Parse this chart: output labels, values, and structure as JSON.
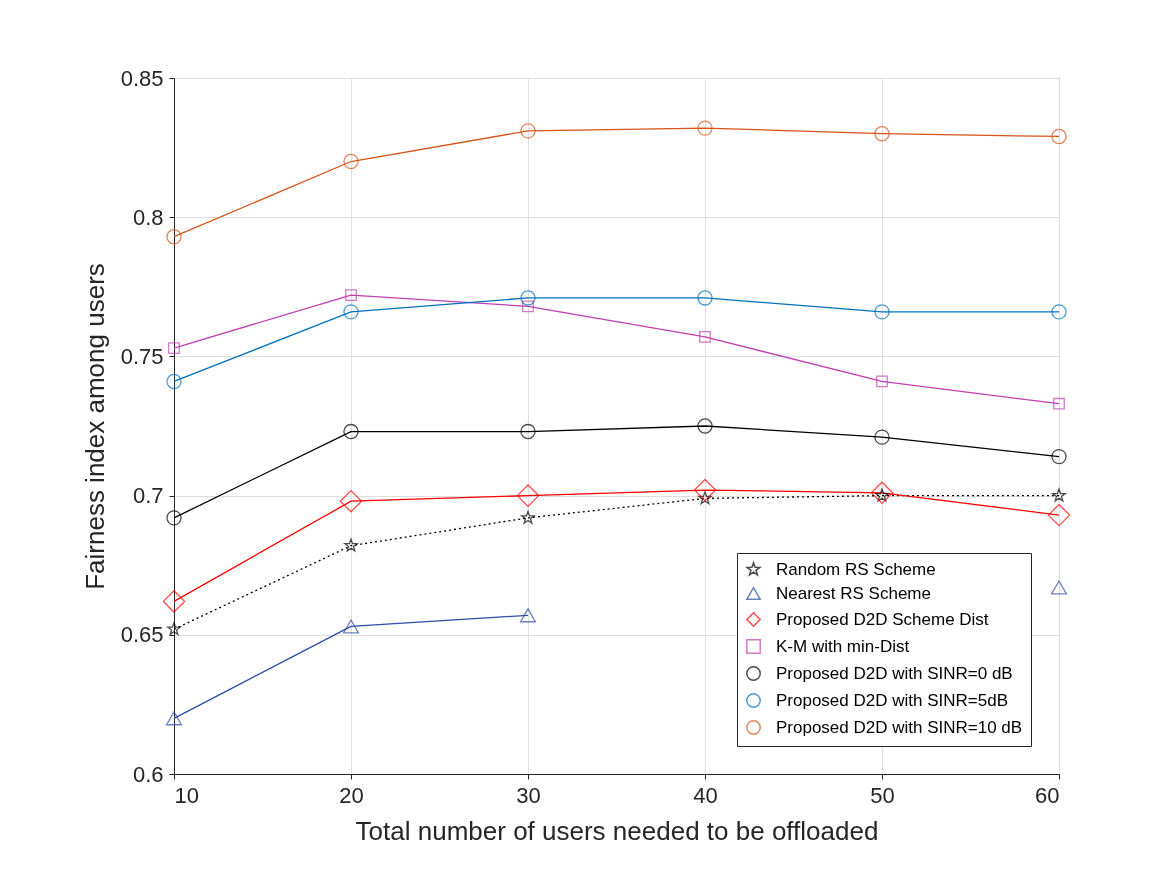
{
  "chart_data": {
    "type": "line",
    "xlabel": "Total number of users needed to be offloaded",
    "ylabel": "Fairness index among users",
    "x": [
      10,
      20,
      30,
      40,
      50,
      60
    ],
    "xlim": [
      10,
      60
    ],
    "xticks": [
      10,
      20,
      30,
      40,
      50,
      60
    ],
    "ylim": [
      0.6,
      0.85
    ],
    "yticks": [
      0.6,
      0.65,
      0.7,
      0.75,
      0.8,
      0.85
    ],
    "grid": true,
    "legend": "bottom right",
    "series": [
      {
        "name": "Random RS Scheme",
        "color": "#000000",
        "marker": "star",
        "line_style": "dotted",
        "values": [
          0.652,
          0.682,
          0.692,
          0.699,
          0.7,
          0.7
        ]
      },
      {
        "name": "Nearest RS Scheme",
        "color": "#2f4ba8",
        "marker": "triangle",
        "line_style": "solid",
        "values": [
          0.62,
          0.653,
          0.657,
          null,
          null,
          0.667
        ]
      },
      {
        "name": "Proposed D2D Scheme Dist",
        "color": "#ff0000",
        "marker": "diamond",
        "line_style": "solid",
        "values": [
          0.662,
          0.698,
          0.7,
          0.702,
          0.701,
          0.693
        ]
      },
      {
        "name": "K-M with min-Dist",
        "color": "#c040b0",
        "marker": "square",
        "line_style": "solid",
        "values": [
          0.753,
          0.772,
          0.768,
          0.757,
          0.741,
          0.733
        ]
      },
      {
        "name": "Proposed D2D with SINR=0 dB",
        "color": "#000000",
        "marker": "circle",
        "line_style": "solid",
        "values": [
          0.692,
          0.723,
          0.723,
          0.725,
          0.721,
          0.714
        ]
      },
      {
        "name": "Proposed D2D with SINR=5dB",
        "color": "#0072bd",
        "marker": "circle",
        "line_style": "solid",
        "values": [
          0.741,
          0.766,
          0.771,
          0.771,
          0.766,
          0.766
        ]
      },
      {
        "name": "Proposed D2D with SINR=10 dB",
        "color": "#d95319",
        "marker": "circle",
        "line_style": "solid",
        "values": [
          0.793,
          0.82,
          0.831,
          0.832,
          0.83,
          0.829
        ]
      }
    ]
  }
}
